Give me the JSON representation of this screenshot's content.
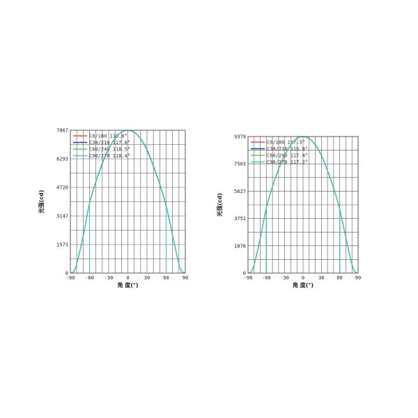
{
  "chart_data": [
    {
      "type": "line",
      "xlabel": "角 度(°)",
      "ylabel": "光强(cd)",
      "xlim": [
        -90,
        90
      ],
      "ylim": [
        0,
        7867
      ],
      "xticks": [
        -90,
        -60,
        -30,
        0,
        30,
        60,
        90
      ],
      "yticks": [
        0,
        1573,
        3147,
        4720,
        6293,
        7867
      ],
      "grid": true,
      "legend_position": "top-left",
      "x": [
        -90,
        -85,
        -80,
        -70,
        -60,
        -50,
        -40,
        -30,
        -20,
        -10,
        0,
        10,
        20,
        30,
        40,
        50,
        60,
        70,
        80,
        85,
        90
      ],
      "series": [
        {
          "name": "C0/180 118.0°",
          "color": "#e05050",
          "values": [
            0,
            80,
            500,
            2050,
            3850,
            5050,
            6050,
            6850,
            7420,
            7760,
            7860,
            7750,
            7400,
            6800,
            5900,
            4900,
            3720,
            2100,
            500,
            80,
            0
          ]
        },
        {
          "name": "C30/210 117.8°",
          "color": "#2a3f9a",
          "values": [
            0,
            80,
            490,
            2030,
            3830,
            5030,
            6030,
            6840,
            7410,
            7760,
            7862,
            7750,
            7390,
            6780,
            5880,
            4880,
            3700,
            2080,
            490,
            80,
            0
          ]
        },
        {
          "name": "C60/240 118.5°",
          "color": "#5ccf5c",
          "values": [
            0,
            85,
            510,
            2070,
            3870,
            5070,
            6070,
            6860,
            7430,
            7770,
            7866,
            7760,
            7410,
            6820,
            5920,
            4920,
            3740,
            2120,
            510,
            85,
            0
          ]
        },
        {
          "name": "C90/270 118.4°",
          "color": "#40c8c0",
          "values": [
            0,
            85,
            505,
            2060,
            3860,
            5060,
            6060,
            6855,
            7425,
            7765,
            7867,
            7755,
            7405,
            6815,
            5915,
            4915,
            3735,
            2115,
            505,
            85,
            0
          ]
        }
      ]
    },
    {
      "type": "line",
      "xlabel": "角 度(°)",
      "ylabel": "光强(cd)",
      "xlim": [
        -90,
        90
      ],
      "ylim": [
        0,
        9379
      ],
      "xticks": [
        -90,
        -60,
        -30,
        0,
        30,
        60,
        90
      ],
      "yticks": [
        0,
        1876,
        3751,
        5627,
        7503,
        9379
      ],
      "grid": true,
      "legend_position": "top-left",
      "x": [
        -90,
        -85,
        -80,
        -70,
        -60,
        -50,
        -40,
        -30,
        -20,
        -10,
        0,
        10,
        20,
        30,
        40,
        50,
        60,
        70,
        80,
        85,
        90
      ],
      "series": [
        {
          "name": "C0/180 117.3°",
          "color": "#e05050",
          "values": [
            0,
            90,
            580,
            2400,
            4500,
            5950,
            7150,
            8100,
            8800,
            9250,
            9370,
            9250,
            8820,
            8100,
            7050,
            5850,
            4400,
            2450,
            580,
            90,
            0
          ]
        },
        {
          "name": "C30/210 116.8°",
          "color": "#2a3f9a",
          "values": [
            0,
            90,
            570,
            2380,
            4480,
            5930,
            7130,
            8090,
            8790,
            9250,
            9375,
            9240,
            8800,
            8080,
            7030,
            5830,
            4380,
            2430,
            570,
            90,
            0
          ]
        },
        {
          "name": "C60/240 117.4°",
          "color": "#5ccf5c",
          "values": [
            0,
            95,
            590,
            2410,
            4510,
            5960,
            7160,
            8110,
            8810,
            9260,
            9378,
            9260,
            8830,
            8110,
            7060,
            5860,
            4410,
            2460,
            590,
            95,
            0
          ]
        },
        {
          "name": "C90/270 117.2°",
          "color": "#40c8c0",
          "values": [
            0,
            92,
            585,
            2405,
            4505,
            5955,
            7155,
            8105,
            8805,
            9255,
            9379,
            9255,
            8825,
            8105,
            7055,
            5855,
            4405,
            2455,
            585,
            92,
            0
          ]
        }
      ]
    }
  ]
}
